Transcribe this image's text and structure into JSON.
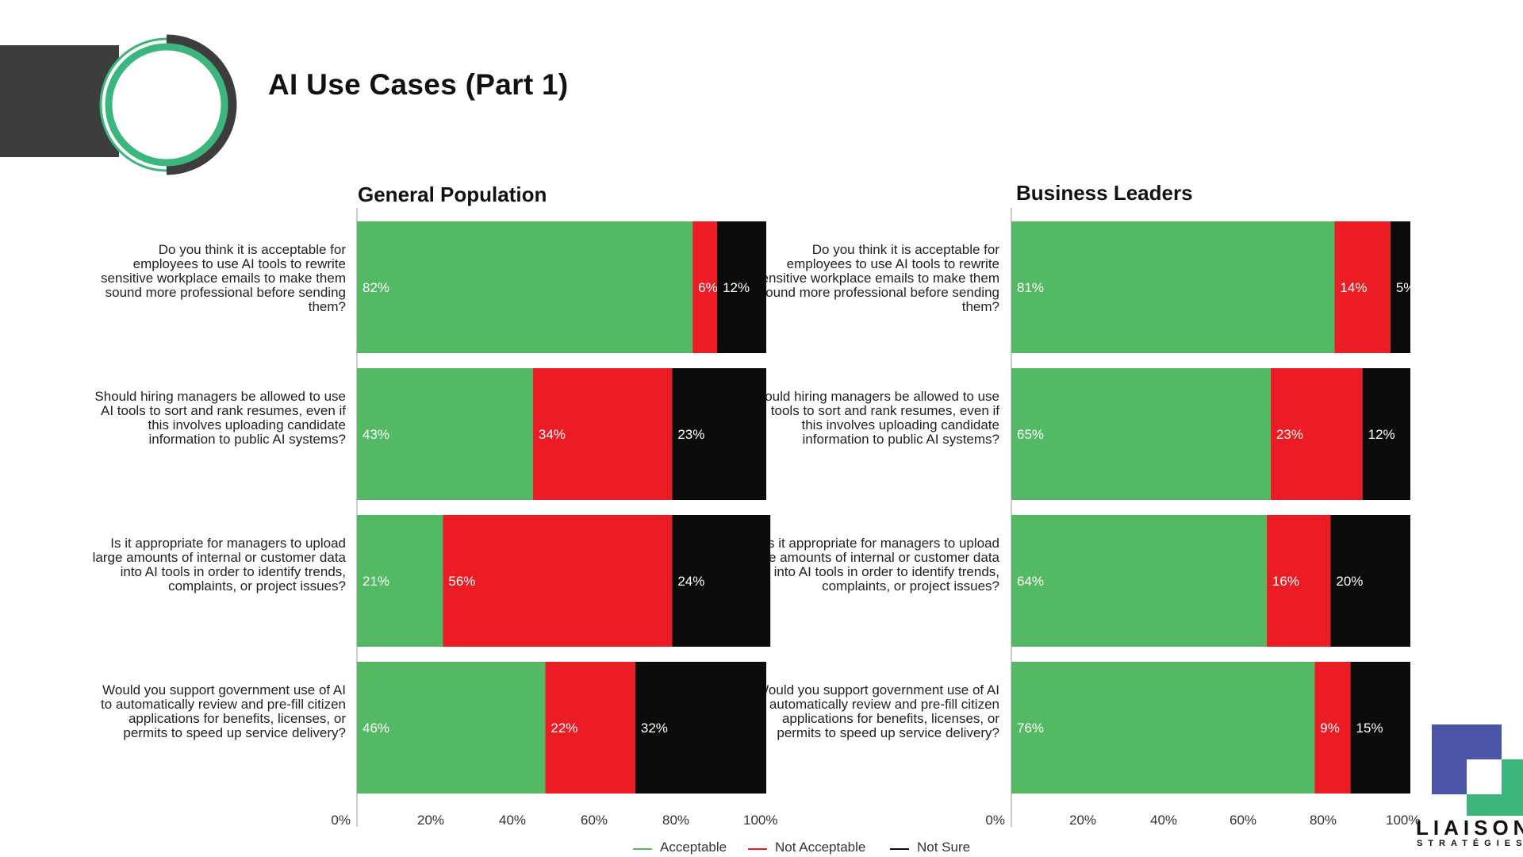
{
  "page": {
    "title": "AI Use Cases (Part 1)"
  },
  "colors": {
    "acceptable": "#54b964",
    "not_acceptable": "#ec1c24",
    "not_sure": "#0b0b0c",
    "deco_green": "#3bb77e",
    "deco_dark": "#3d3d3d",
    "logo_purple": "#4a55a8"
  },
  "questions": [
    "Do you think it is acceptable for employees to use AI tools to rewrite sensitive workplace emails to make them sound more professional before sending them?",
    "Should hiring managers be allowed to use AI tools to sort and rank resumes, even if this involves uploading candidate information to public AI systems?",
    "Is it appropriate for managers to upload large amounts of internal or customer data into AI tools in order to identify trends, complaints, or project issues?",
    "Would you support government use of AI to automatically review and pre-fill citizen applications for benefits, licenses, or permits to speed up service delivery?"
  ],
  "chart_data": [
    {
      "type": "bar",
      "orientation": "horizontal-stacked",
      "title": "General Population",
      "categories": [
        "Do you think it is acceptable for employees to use AI tools to rewrite sensitive workplace emails to make them sound more professional before sending them?",
        "Should hiring managers be allowed to use AI tools to sort and rank resumes, even if this involves uploading candidate information to public AI systems?",
        "Is it appropriate for managers to upload large amounts of internal or customer data into AI tools in order to identify trends, complaints, or project issues?",
        "Would you support government use of AI to automatically review and pre-fill citizen applications for benefits, licenses, or permits to speed up service delivery?"
      ],
      "series": [
        {
          "name": "Acceptable",
          "values": [
            82,
            43,
            21,
            46
          ]
        },
        {
          "name": "Not Acceptable",
          "values": [
            6,
            34,
            56,
            22
          ]
        },
        {
          "name": "Not Sure",
          "values": [
            12,
            23,
            24,
            32
          ]
        }
      ],
      "xlim": [
        0,
        100
      ],
      "ticks": [
        "0%",
        "20%",
        "40%",
        "60%",
        "80%",
        "100%"
      ]
    },
    {
      "type": "bar",
      "orientation": "horizontal-stacked",
      "title": "Business Leaders",
      "categories": [
        "Do you think it is acceptable for employees to use AI tools to rewrite sensitive workplace emails to make them sound more professional before sending them?",
        "Should hiring managers be allowed to use AI tools to sort and rank resumes, even if this involves uploading candidate information to public AI systems?",
        "Is it appropriate for managers to upload large amounts of internal or customer data into AI tools in order to identify trends, complaints, or project issues?",
        "Would you support government use of AI to automatically review and pre-fill citizen applications for benefits, licenses, or permits to speed up service delivery?"
      ],
      "series": [
        {
          "name": "Acceptable",
          "values": [
            81,
            65,
            64,
            76
          ]
        },
        {
          "name": "Not Acceptable",
          "values": [
            14,
            23,
            16,
            9
          ]
        },
        {
          "name": "Not Sure",
          "values": [
            5,
            12,
            20,
            15
          ]
        }
      ],
      "xlim": [
        0,
        100
      ],
      "ticks": [
        "0%",
        "20%",
        "40%",
        "60%",
        "80%",
        "100%"
      ]
    }
  ],
  "legend": [
    "Acceptable",
    "Not Acceptable",
    "Not Sure"
  ],
  "logo": {
    "name": "LIAISON",
    "sub": "STRATÉGIES"
  }
}
